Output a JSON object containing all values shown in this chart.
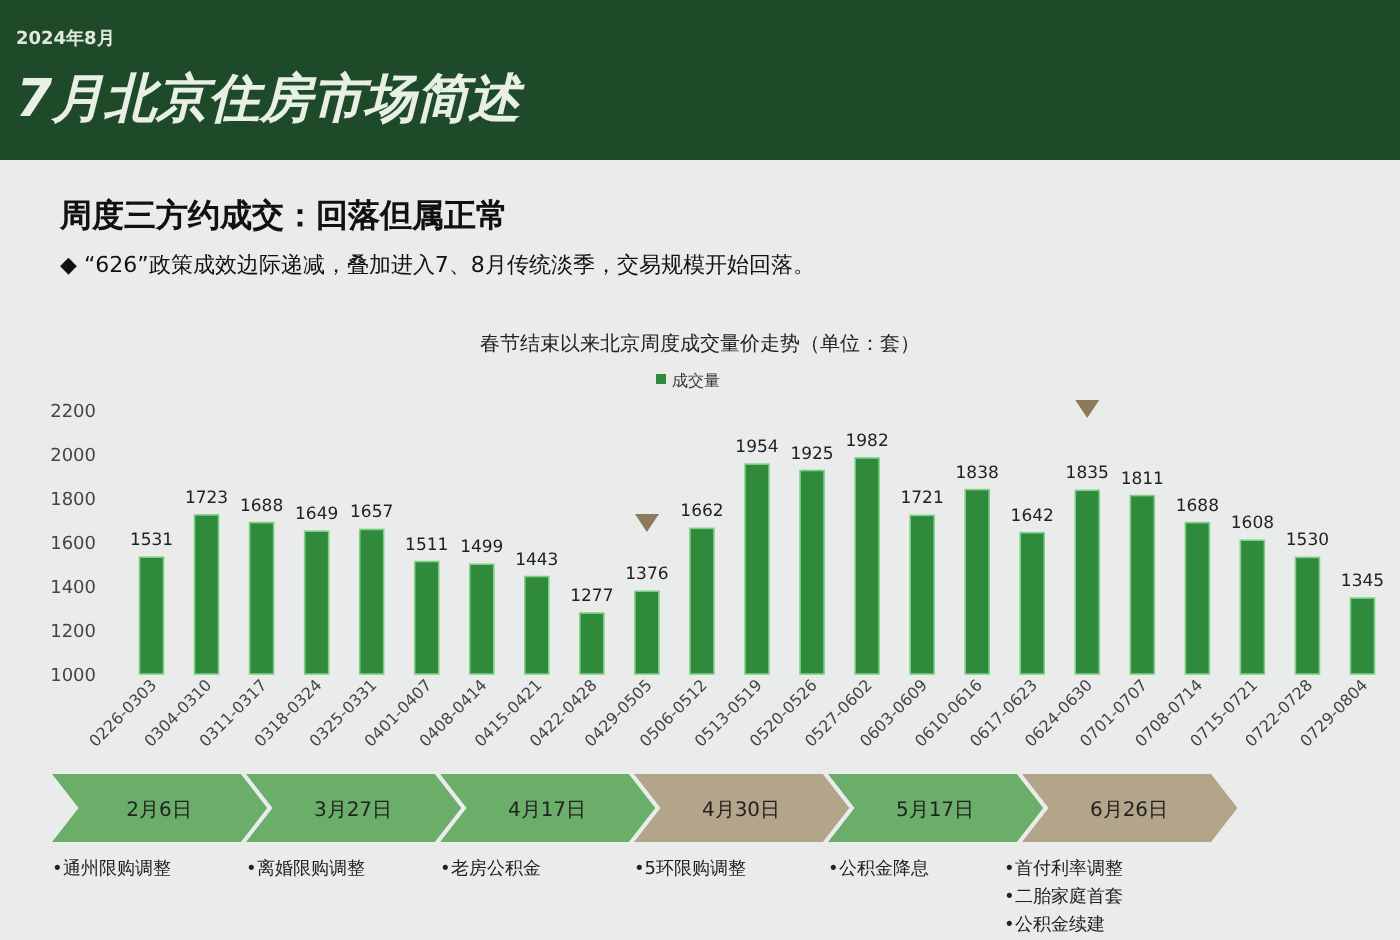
{
  "chart_data": {
    "type": "bar",
    "title": "春节结束以来北京周度成交量价走势（单位：套）",
    "categories": [
      "0226-0303",
      "0304-0310",
      "0311-0317",
      "0318-0324",
      "0325-0331",
      "0401-0407",
      "0408-0414",
      "0415-0421",
      "0422-0428",
      "0429-0505",
      "0506-0512",
      "0513-0519",
      "0520-0526",
      "0527-0602",
      "0603-0609",
      "0610-0616",
      "0617-0623",
      "0624-0630",
      "0701-0707",
      "0708-0714",
      "0715-0721",
      "0722-0728",
      "0729-0804"
    ],
    "series": [
      {
        "name": "成交量",
        "color": "#2f8a3c",
        "values": [
          1531,
          1723,
          1688,
          1649,
          1657,
          1511,
          1499,
          1443,
          1277,
          1376,
          1662,
          1954,
          1925,
          1982,
          1721,
          1838,
          1642,
          1835,
          1811,
          1688,
          1608,
          1530,
          1345
        ]
      }
    ],
    "ylim": [
      1000,
      2200
    ],
    "yticks": [
      1000,
      1200,
      1400,
      1600,
      1800,
      2000,
      2200
    ],
    "data_labels": true,
    "legend": "top",
    "annotations": [
      "2024年8月",
      "7月北京住房市场简述",
      "周度三方约成交：回落但属正常",
      "◆ “626”政策成效边际递减，叠加进入7、8月传统淡季，交易规模开始回落。",
      "2月6日",
      "3月27日",
      "4月17日",
      "4月30日",
      "5月17日",
      "6月26日",
      "•通州限购调整",
      "•离婚限购调整",
      "•老房公积金",
      "•5环限购调整",
      "•公积金降息",
      "•首付利率调整",
      "•二胎家庭首套",
      "•公积金续建"
    ]
  }
}
